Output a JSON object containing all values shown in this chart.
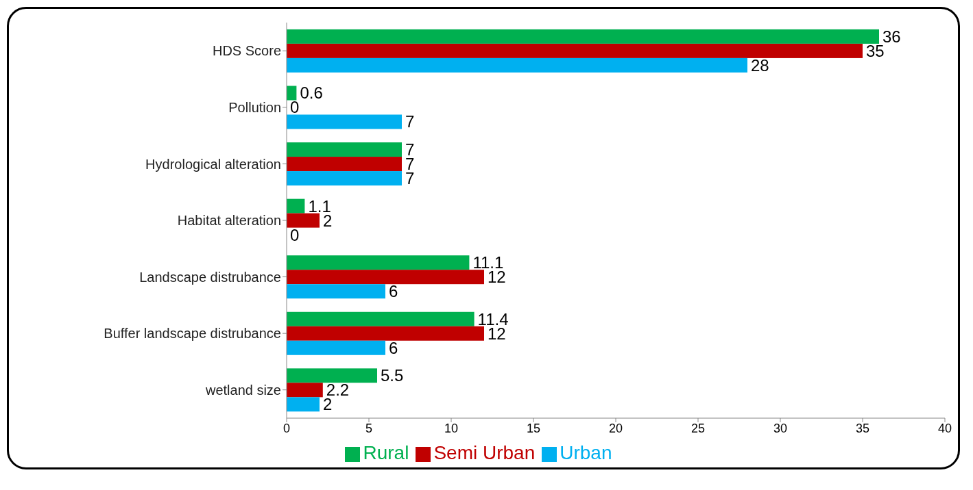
{
  "chart_data": {
    "type": "bar",
    "orientation": "horizontal",
    "categories": [
      "HDS Score",
      "Pollution",
      "Hydrological alteration",
      "Habitat alteration",
      "Landscape distrubance",
      "Buffer landscape distrubance",
      "wetland size"
    ],
    "series": [
      {
        "name": "Rural",
        "color": "#00b050",
        "values": [
          36,
          0.6,
          7,
          1.1,
          11.1,
          11.4,
          5.5
        ]
      },
      {
        "name": "Semi Urban",
        "color": "#c00000",
        "values": [
          35,
          0,
          7,
          2,
          12,
          12,
          2.2
        ]
      },
      {
        "name": "Urban",
        "color": "#00b0f0",
        "values": [
          28,
          7,
          7,
          0,
          6,
          6,
          2
        ]
      }
    ],
    "xlim": [
      0,
      40
    ],
    "xticks": [
      0,
      5,
      10,
      15,
      20,
      25,
      30,
      35,
      40
    ],
    "data_labels": true,
    "legend": "bottom",
    "grid": false
  }
}
